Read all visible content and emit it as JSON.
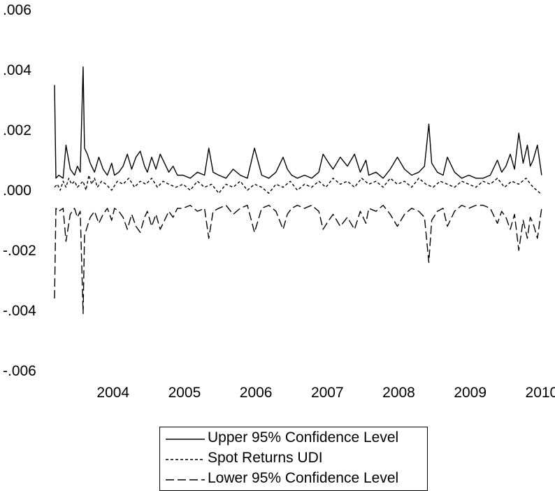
{
  "chart_data": {
    "type": "line",
    "title": "",
    "xlabel": "",
    "ylabel": "",
    "ylim": [
      -0.006,
      0.006
    ],
    "xlim": [
      2003.2,
      2010.05
    ],
    "yticks": [
      {
        "value": 0.006,
        "label": ".006"
      },
      {
        "value": 0.004,
        "label": ".004"
      },
      {
        "value": 0.002,
        "label": ".002"
      },
      {
        "value": 0.0,
        "label": ".000"
      },
      {
        "value": -0.002,
        "label": "-.002"
      },
      {
        "value": -0.004,
        "label": "-.004"
      },
      {
        "value": -0.006,
        "label": "-.006"
      }
    ],
    "xticks": [
      {
        "value": 2004,
        "label": "2004"
      },
      {
        "value": 2005,
        "label": "2005"
      },
      {
        "value": 2006,
        "label": "2006"
      },
      {
        "value": 2007,
        "label": "2007"
      },
      {
        "value": 2008,
        "label": "2008"
      },
      {
        "value": 2009,
        "label": "2009"
      },
      {
        "value": 2010,
        "label": "2010"
      }
    ],
    "grid": false,
    "legend_position": "bottom-center",
    "series": [
      {
        "name": "Upper 95% Confidence Level",
        "style": "solid",
        "color": "#000000",
        "x": [
          2003.2,
          2003.22,
          2003.26,
          2003.32,
          2003.36,
          2003.42,
          2003.48,
          2003.52,
          2003.56,
          2003.6,
          2003.62,
          2003.66,
          2003.7,
          2003.76,
          2003.82,
          2003.88,
          2003.94,
          2004.0,
          2004.04,
          2004.1,
          2004.16,
          2004.22,
          2004.28,
          2004.34,
          2004.4,
          2004.46,
          2004.5,
          2004.56,
          2004.62,
          2004.68,
          2004.74,
          2004.8,
          2004.86,
          2004.92,
          2005.0,
          2005.1,
          2005.2,
          2005.3,
          2005.36,
          2005.42,
          2005.5,
          2005.6,
          2005.7,
          2005.8,
          2005.9,
          2006.0,
          2006.1,
          2006.2,
          2006.3,
          2006.4,
          2006.46,
          2006.52,
          2006.6,
          2006.7,
          2006.8,
          2006.9,
          2006.96,
          2007.04,
          2007.1,
          2007.2,
          2007.3,
          2007.4,
          2007.48,
          2007.56,
          2007.6,
          2007.7,
          2007.8,
          2007.9,
          2008.0,
          2008.1,
          2008.2,
          2008.3,
          2008.38,
          2008.44,
          2008.48,
          2008.56,
          2008.64,
          2008.7,
          2008.8,
          2008.9,
          2009.0,
          2009.1,
          2009.2,
          2009.3,
          2009.4,
          2009.46,
          2009.52,
          2009.58,
          2009.64,
          2009.7,
          2009.76,
          2009.82,
          2009.86,
          2009.9,
          2009.96,
          2010.02
        ],
        "y": [
          0.0035,
          0.0004,
          0.0005,
          0.0004,
          0.0015,
          0.0007,
          0.0005,
          0.0008,
          0.0006,
          0.0041,
          0.0014,
          0.0012,
          0.0009,
          0.0006,
          0.0011,
          0.0007,
          0.0005,
          0.0009,
          0.0005,
          0.0006,
          0.0008,
          0.0012,
          0.0007,
          0.0011,
          0.0013,
          0.0008,
          0.0006,
          0.0011,
          0.0007,
          0.0012,
          0.0009,
          0.0006,
          0.0008,
          0.0005,
          0.0005,
          0.0004,
          0.0006,
          0.0005,
          0.0014,
          0.0006,
          0.0005,
          0.0004,
          0.0007,
          0.0005,
          0.0004,
          0.0014,
          0.0005,
          0.0004,
          0.0006,
          0.0011,
          0.0007,
          0.0005,
          0.0004,
          0.0005,
          0.0004,
          0.0006,
          0.0012,
          0.0009,
          0.0007,
          0.0011,
          0.0008,
          0.0012,
          0.0006,
          0.001,
          0.0005,
          0.0006,
          0.0004,
          0.0007,
          0.0011,
          0.0007,
          0.0005,
          0.0006,
          0.0008,
          0.0022,
          0.0009,
          0.0006,
          0.0005,
          0.0011,
          0.0006,
          0.0004,
          0.0005,
          0.0004,
          0.0004,
          0.0005,
          0.001,
          0.0006,
          0.0008,
          0.0012,
          0.0007,
          0.0019,
          0.0009,
          0.0015,
          0.0008,
          0.001,
          0.0015,
          0.0005
        ]
      },
      {
        "name": "Spot Returns UDI",
        "style": "short-dash",
        "color": "#000000",
        "x": [
          2003.2,
          2003.24,
          2003.28,
          2003.32,
          2003.36,
          2003.4,
          2003.44,
          2003.48,
          2003.52,
          2003.56,
          2003.6,
          2003.64,
          2003.68,
          2003.72,
          2003.76,
          2003.8,
          2003.86,
          2003.92,
          2004.0,
          2004.08,
          2004.16,
          2004.24,
          2004.32,
          2004.4,
          2004.48,
          2004.56,
          2004.64,
          2004.72,
          2004.8,
          2004.9,
          2005.0,
          2005.1,
          2005.2,
          2005.3,
          2005.4,
          2005.5,
          2005.6,
          2005.7,
          2005.8,
          2005.9,
          2006.0,
          2006.1,
          2006.2,
          2006.3,
          2006.4,
          2006.5,
          2006.6,
          2006.7,
          2006.8,
          2006.9,
          2007.0,
          2007.1,
          2007.2,
          2007.3,
          2007.4,
          2007.5,
          2007.6,
          2007.7,
          2007.8,
          2007.9,
          2008.0,
          2008.1,
          2008.2,
          2008.3,
          2008.4,
          2008.5,
          2008.6,
          2008.7,
          2008.8,
          2008.9,
          2009.0,
          2009.1,
          2009.2,
          2009.3,
          2009.4,
          2009.5,
          2009.6,
          2009.7,
          2009.8,
          2009.9,
          2010.0
        ],
        "y": [
          0.0001,
          0.0002,
          0.0,
          0.0003,
          0.0001,
          0.0004,
          0.0002,
          0.0003,
          0.0001,
          0.0002,
          0.0003,
          0.0,
          0.0005,
          0.0002,
          0.0004,
          0.0001,
          0.0003,
          0.0002,
          0.0,
          0.0003,
          0.0002,
          0.0004,
          0.0001,
          0.0003,
          0.0002,
          0.0004,
          0.0001,
          0.0003,
          0.0002,
          0.0001,
          0.0002,
          0.0,
          0.0003,
          0.0001,
          0.0002,
          -0.0001,
          0.0002,
          0.0001,
          0.0003,
          0.0,
          0.0002,
          0.0001,
          -0.0001,
          0.0002,
          0.0001,
          0.0003,
          0.0,
          0.0002,
          0.0001,
          0.0003,
          0.0001,
          0.0004,
          0.0002,
          0.0003,
          0.0001,
          0.0004,
          0.0002,
          0.0003,
          0.0001,
          0.0004,
          0.0002,
          0.0003,
          0.0001,
          0.0004,
          0.0002,
          0.0001,
          0.0003,
          0.0002,
          0.0001,
          0.0003,
          0.0002,
          0.0001,
          0.0003,
          0.0002,
          0.0004,
          0.0001,
          0.0003,
          0.0002,
          0.0004,
          0.0001,
          -0.0001
        ]
      },
      {
        "name": "Lower 95% Confidence Level",
        "style": "long-dash",
        "color": "#000000",
        "x": [
          2003.2,
          2003.22,
          2003.26,
          2003.32,
          2003.36,
          2003.42,
          2003.48,
          2003.52,
          2003.56,
          2003.6,
          2003.62,
          2003.66,
          2003.7,
          2003.76,
          2003.82,
          2003.88,
          2003.94,
          2004.0,
          2004.04,
          2004.1,
          2004.16,
          2004.22,
          2004.28,
          2004.34,
          2004.4,
          2004.46,
          2004.5,
          2004.56,
          2004.62,
          2004.68,
          2004.74,
          2004.8,
          2004.86,
          2004.92,
          2005.0,
          2005.1,
          2005.2,
          2005.3,
          2005.36,
          2005.42,
          2005.5,
          2005.6,
          2005.7,
          2005.8,
          2005.9,
          2006.0,
          2006.1,
          2006.2,
          2006.3,
          2006.4,
          2006.46,
          2006.52,
          2006.6,
          2006.7,
          2006.8,
          2006.9,
          2006.96,
          2007.04,
          2007.1,
          2007.2,
          2007.3,
          2007.4,
          2007.48,
          2007.56,
          2007.6,
          2007.7,
          2007.8,
          2007.9,
          2008.0,
          2008.1,
          2008.2,
          2008.3,
          2008.38,
          2008.44,
          2008.48,
          2008.56,
          2008.64,
          2008.7,
          2008.8,
          2008.9,
          2009.0,
          2009.1,
          2009.2,
          2009.3,
          2009.4,
          2009.46,
          2009.52,
          2009.58,
          2009.64,
          2009.7,
          2009.76,
          2009.82,
          2009.86,
          2009.9,
          2009.96,
          2010.02
        ],
        "y": [
          -0.0036,
          -0.0006,
          -0.0007,
          -0.0006,
          -0.0017,
          -0.0008,
          -0.0006,
          -0.0009,
          -0.0007,
          -0.0041,
          -0.0015,
          -0.0012,
          -0.0009,
          -0.0007,
          -0.0011,
          -0.0008,
          -0.0006,
          -0.001,
          -0.0006,
          -0.0007,
          -0.0009,
          -0.0013,
          -0.0008,
          -0.0012,
          -0.0014,
          -0.0009,
          -0.0007,
          -0.0012,
          -0.0008,
          -0.0013,
          -0.001,
          -0.0007,
          -0.0009,
          -0.0006,
          -0.0006,
          -0.0005,
          -0.0007,
          -0.0006,
          -0.0016,
          -0.0007,
          -0.0006,
          -0.0005,
          -0.0008,
          -0.0006,
          -0.0005,
          -0.0014,
          -0.0006,
          -0.0005,
          -0.0007,
          -0.0013,
          -0.0008,
          -0.0006,
          -0.0005,
          -0.0006,
          -0.0005,
          -0.0007,
          -0.0013,
          -0.001,
          -0.0008,
          -0.0012,
          -0.0009,
          -0.0013,
          -0.0007,
          -0.0011,
          -0.0006,
          -0.0007,
          -0.0005,
          -0.0008,
          -0.0012,
          -0.0008,
          -0.0006,
          -0.0007,
          -0.0009,
          -0.0024,
          -0.001,
          -0.0007,
          -0.0006,
          -0.0012,
          -0.0007,
          -0.0005,
          -0.0006,
          -0.0005,
          -0.0005,
          -0.0006,
          -0.0011,
          -0.0007,
          -0.0009,
          -0.0013,
          -0.0008,
          -0.002,
          -0.001,
          -0.0016,
          -0.0009,
          -0.0011,
          -0.0016,
          -0.0006
        ]
      }
    ]
  }
}
